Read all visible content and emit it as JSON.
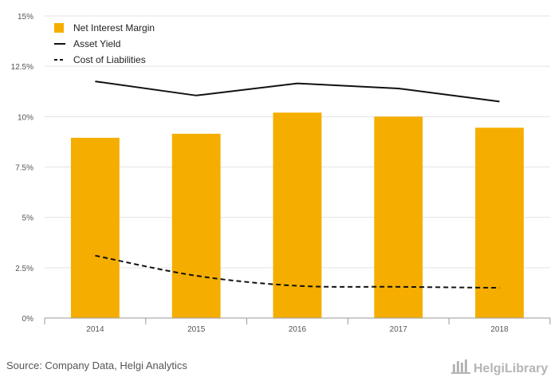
{
  "chart_data": {
    "type": "bar",
    "categories": [
      "2014",
      "2015",
      "2016",
      "2017",
      "2018"
    ],
    "y_ticks": [
      "0%",
      "2.5%",
      "5%",
      "7.5%",
      "10%",
      "12.5%",
      "15%"
    ],
    "ylim": [
      0,
      15
    ],
    "grid": true,
    "legend_position": "top-left",
    "series": [
      {
        "name": "Net Interest Margin",
        "kind": "bar",
        "color": "#f5ae00",
        "values": [
          8.95,
          9.15,
          10.2,
          10.0,
          9.45
        ]
      },
      {
        "name": "Asset Yield",
        "kind": "line",
        "style": "solid",
        "color": "#111111",
        "values": [
          11.75,
          11.05,
          11.65,
          11.4,
          10.75
        ]
      },
      {
        "name": "Cost of Liabilities",
        "kind": "line",
        "style": "dashed",
        "color": "#111111",
        "values": [
          3.1,
          2.1,
          1.6,
          1.55,
          1.5
        ]
      }
    ]
  },
  "footer": {
    "source": "Source: Company Data, Helgi Analytics",
    "logo": "HelgiLibrary"
  }
}
